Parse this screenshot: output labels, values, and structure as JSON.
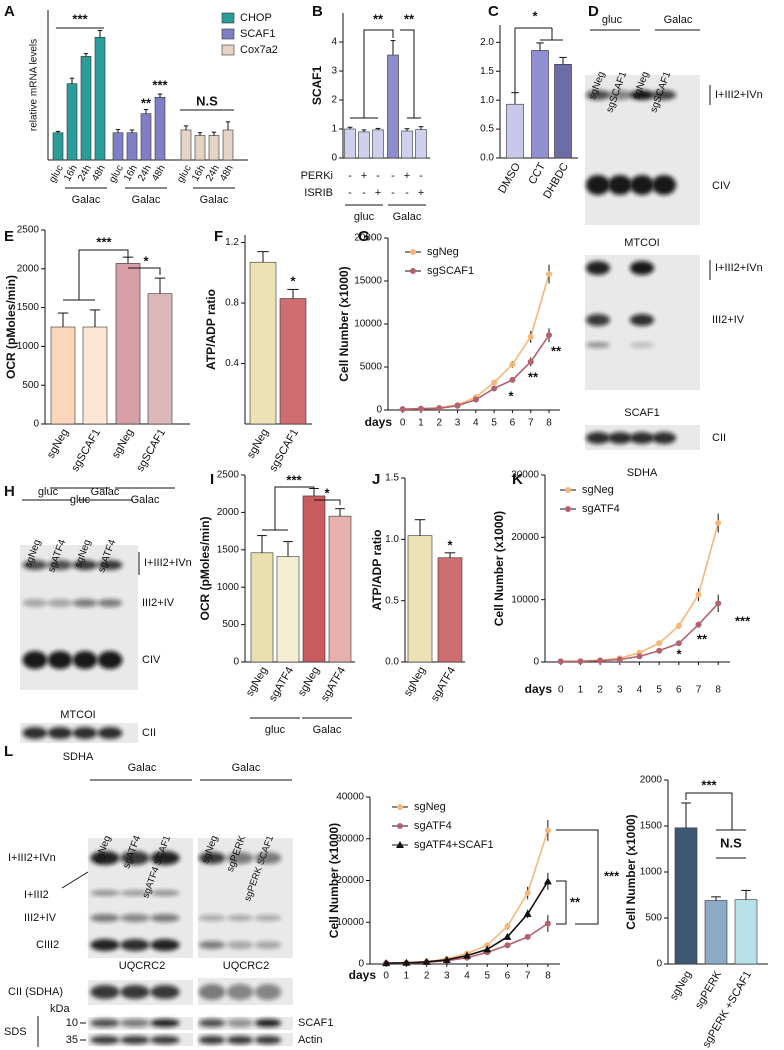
{
  "panel_labels": [
    "A",
    "B",
    "C",
    "D",
    "E",
    "F",
    "G",
    "H",
    "I",
    "J",
    "K",
    "L"
  ],
  "chart_data": [
    {
      "type": "bar",
      "ylabel": "relative mRNA levels",
      "ylim": [
        0,
        5.5
      ],
      "categories": [
        "gluc",
        "16h",
        "24h",
        "48h"
      ],
      "series": [
        {
          "name": "CHOP",
          "color": "#2a9d9a",
          "values": [
            1.0,
            2.8,
            3.8,
            4.5
          ],
          "errors": [
            0.05,
            0.2,
            0.1,
            0.25
          ]
        },
        {
          "name": "SCAF1",
          "color": "#7f7fc6",
          "values": [
            1.0,
            1.0,
            1.7,
            2.3
          ],
          "errors": [
            0.12,
            0.1,
            0.15,
            0.12
          ]
        },
        {
          "name": "Cox7a2",
          "color": "#e7d3c3",
          "values": [
            1.1,
            0.9,
            0.9,
            1.1
          ],
          "errors": [
            0.15,
            0.1,
            0.12,
            0.3
          ]
        }
      ],
      "groups": [
        "Galac",
        "Galac",
        "Galac"
      ],
      "annotations": [
        "***",
        "**",
        "***",
        "N.S"
      ]
    },
    {
      "type": "bar",
      "ylabel": "SCAF1",
      "ylim": [
        0,
        5
      ],
      "yticks": [
        0,
        1,
        2,
        3,
        4
      ],
      "values": [
        1.0,
        0.9,
        0.97,
        3.55,
        0.93,
        0.98
      ],
      "errors": [
        0.06,
        0.07,
        0.05,
        0.5,
        0.08,
        0.1
      ],
      "colors": [
        "#cfcfee",
        "#cfcfee",
        "#cfcfee",
        "#8c8ccf",
        "#cfcfee",
        "#cfcfee"
      ],
      "rows": [
        {
          "label": "PERKi",
          "marks": [
            "-",
            "+",
            "-",
            "-",
            "+",
            "-"
          ]
        },
        {
          "label": "ISRIB",
          "marks": [
            "-",
            "-",
            "+",
            "-",
            "-",
            "+"
          ]
        }
      ],
      "groups": [
        "gluc",
        "Galac"
      ],
      "annotations": [
        "**",
        "**"
      ]
    },
    {
      "type": "bar",
      "ylim": [
        0,
        2.3
      ],
      "yticks": [
        {
          "value": 0,
          "label": "0.0"
        },
        0.5,
        {
          "value": 1,
          "label": "1.0"
        },
        1.5,
        {
          "value": 2,
          "label": "2.0"
        }
      ],
      "categories": [
        "DMSO",
        "CCT",
        "DHBDC"
      ],
      "values": [
        0.93,
        1.86,
        1.62
      ],
      "errors": [
        0.2,
        0.13,
        0.12
      ],
      "colors": [
        "#c8c8ea",
        "#8f8fd1",
        "#6c6ca6"
      ],
      "annotations": [
        "*"
      ]
    },
    {
      "type": "bar",
      "ylabel": "OCR (pMoles/min)",
      "ylim": [
        0,
        2500
      ],
      "yticks": [
        0,
        500,
        1000,
        1500,
        2000,
        2500
      ],
      "categories": [
        "sgNeg",
        "sgSCAF1",
        "sgNeg",
        "sgSCAF1"
      ],
      "values": [
        1250,
        1250,
        2070,
        1680
      ],
      "errors": [
        180,
        220,
        80,
        200
      ],
      "colors": [
        "#fcd6bb",
        "#fde6d3",
        "#d6a0a6",
        "#ddb8bb"
      ],
      "groups": [
        "gluc",
        "Galac"
      ],
      "annotations": [
        "***",
        "*"
      ]
    },
    {
      "type": "bar",
      "ylabel": "ATP/ADP ratio",
      "ylim": [
        0,
        1.25
      ],
      "yticks": [
        0.4,
        0.8,
        1.2
      ],
      "categories": [
        "sgNeg",
        "sgSCAF1"
      ],
      "values": [
        1.07,
        0.83
      ],
      "errors": [
        0.07,
        0.06
      ],
      "colors": [
        "#ede2b6",
        "#cf6e70"
      ],
      "annotations": [
        "*"
      ]
    },
    {
      "type": "line",
      "ylabel": "Cell Number (x1000)",
      "xlabel": "days",
      "x": [
        0,
        1,
        2,
        3,
        4,
        5,
        6,
        7,
        8
      ],
      "xlim": [
        -0.8,
        8.6
      ],
      "ylim": [
        0,
        20000
      ],
      "yticks": [
        0,
        5000,
        10000,
        15000,
        20000
      ],
      "series": [
        {
          "name": "sgNeg",
          "color": "#f6b679",
          "values": [
            100,
            150,
            250,
            600,
            1500,
            3200,
            5300,
            8500,
            15800
          ],
          "errors": [
            50,
            50,
            80,
            100,
            200,
            300,
            400,
            700,
            1100
          ]
        },
        {
          "name": "sgSCAF1",
          "color": "#b4616f",
          "values": [
            100,
            150,
            200,
            500,
            1200,
            2500,
            3500,
            5600,
            8700
          ],
          "errors": [
            50,
            50,
            60,
            100,
            150,
            250,
            300,
            500,
            800
          ]
        }
      ],
      "annotations": [
        "*",
        "**",
        "**"
      ]
    },
    {
      "type": "bar",
      "ylabel": "OCR (pMoles/min)",
      "ylim": [
        0,
        2500
      ],
      "yticks": [
        0,
        500,
        1000,
        1500,
        2000,
        2500
      ],
      "categories": [
        "sgNeg",
        "sgATF4",
        "sgNeg",
        "sgATF4"
      ],
      "values": [
        1460,
        1410,
        2220,
        1950
      ],
      "errors": [
        230,
        200,
        100,
        100
      ],
      "colors": [
        "#eadfae",
        "#f5eed2",
        "#c95a5e",
        "#e8b0ac"
      ],
      "groups": [
        "gluc",
        "Galac"
      ],
      "annotations": [
        "***",
        "*"
      ]
    },
    {
      "type": "bar",
      "ylabel": "ATP/ADP ratio",
      "ylim": [
        0,
        1.5
      ],
      "yticks": [
        {
          "value": 0,
          "label": "0.0"
        },
        0.5,
        {
          "value": 1,
          "label": "1.0"
        },
        1.5
      ],
      "categories": [
        "sgNeg",
        "sgATF4"
      ],
      "values": [
        1.03,
        0.85
      ],
      "errors": [
        0.13,
        0.04
      ],
      "colors": [
        "#ede2b6",
        "#cf6e70"
      ],
      "annotations": [
        "*"
      ]
    },
    {
      "type": "line",
      "ylabel": "Cell Number (x1000)",
      "xlabel": "days",
      "x": [
        0,
        1,
        2,
        3,
        4,
        5,
        6,
        7,
        8
      ],
      "xlim": [
        -0.8,
        8.6
      ],
      "ylim": [
        0,
        30000
      ],
      "yticks": [
        0,
        10000,
        20000,
        30000
      ],
      "series": [
        {
          "name": "sgNeg",
          "color": "#f6b679",
          "values": [
            100,
            150,
            300,
            600,
            1500,
            3000,
            5800,
            10800,
            22300
          ],
          "errors": [
            50,
            50,
            80,
            100,
            200,
            300,
            500,
            1000,
            1500
          ]
        },
        {
          "name": "sgATF4",
          "color": "#b4616f",
          "values": [
            100,
            100,
            200,
            400,
            900,
            1800,
            3000,
            6000,
            9400
          ],
          "errors": [
            50,
            50,
            60,
            80,
            150,
            200,
            300,
            500,
            1400
          ]
        }
      ],
      "annotations": [
        "*",
        "**",
        "***"
      ]
    },
    {
      "type": "line",
      "ylabel": "Cell Number (x1000)",
      "xlabel": "days",
      "x": [
        0,
        1,
        2,
        3,
        4,
        5,
        6,
        7,
        8
      ],
      "xlim": [
        -0.8,
        8.6
      ],
      "ylim": [
        0,
        40000
      ],
      "yticks": [
        0,
        10000,
        20000,
        30000,
        40000
      ],
      "series": [
        {
          "name": "sgNeg",
          "color": "#f6b679",
          "values": [
            200,
            300,
            600,
            1200,
            2500,
            4500,
            9000,
            17000,
            32000
          ],
          "errors": [
            50,
            80,
            100,
            200,
            300,
            400,
            800,
            1500,
            2500
          ]
        },
        {
          "name": "sgATF4",
          "color": "#b4616f",
          "values": [
            200,
            200,
            400,
            800,
            1500,
            2800,
            4500,
            6500,
            9700
          ],
          "errors": [
            50,
            50,
            80,
            100,
            200,
            300,
            400,
            600,
            2000
          ]
        },
        {
          "name": "sgATF4+SCAF1",
          "color": "#111111",
          "values": [
            200,
            300,
            500,
            1000,
            2000,
            3500,
            6500,
            12000,
            19800
          ],
          "errors": [
            50,
            60,
            80,
            150,
            200,
            300,
            600,
            1000,
            2000
          ]
        }
      ],
      "annotations": [
        "***",
        "**"
      ]
    },
    {
      "type": "bar",
      "ylabel": "Cell Number (x1000)",
      "ylim": [
        0,
        2000
      ],
      "yticks": [
        0,
        500,
        1000,
        1500,
        2000
      ],
      "categories": [
        "sgNeg",
        "sgPERK",
        "sgPERK +SCAF1"
      ],
      "values": [
        1480,
        690,
        700
      ],
      "errors": [
        270,
        40,
        100
      ],
      "colors": [
        "#3d5873",
        "#8aaac6",
        "#b8e0e8"
      ],
      "annotations": [
        "***",
        "N.S"
      ]
    }
  ],
  "blots": [
    {
      "texts": [
        "gluc",
        "Galac",
        "sgNeg",
        "sgSCAF1",
        "sgNeg",
        "sgSCAF1",
        "I+III2+IVn",
        "CIV",
        "MTCOI",
        "I+III2+IVn",
        "III2+IV",
        "SCAF1",
        "CII",
        "SDHA"
      ]
    },
    {
      "texts": [
        "gluc",
        "Galac",
        "sgNeg",
        "sgATF4",
        "sgNeg",
        "sgATF4",
        "I+III2+IVn",
        "III2+IV",
        "CIV",
        "MTCOI",
        "CII",
        "SDHA"
      ]
    },
    {
      "texts": [
        "Galac",
        "sgNeg",
        "sgATF4",
        "sgATF4 SCAF1",
        "I+III2+IVn",
        "I+III2",
        "III2+IV",
        "CIII2",
        "UQCRC2",
        "CII (SDHA)",
        "kDa",
        "SDS",
        "10",
        "35"
      ]
    },
    {
      "texts": [
        "Galac",
        "sgNeg",
        "sgPERK",
        "sgPERK SCAF1",
        "UQCRC2",
        "SCAF1",
        "Actin"
      ]
    }
  ]
}
